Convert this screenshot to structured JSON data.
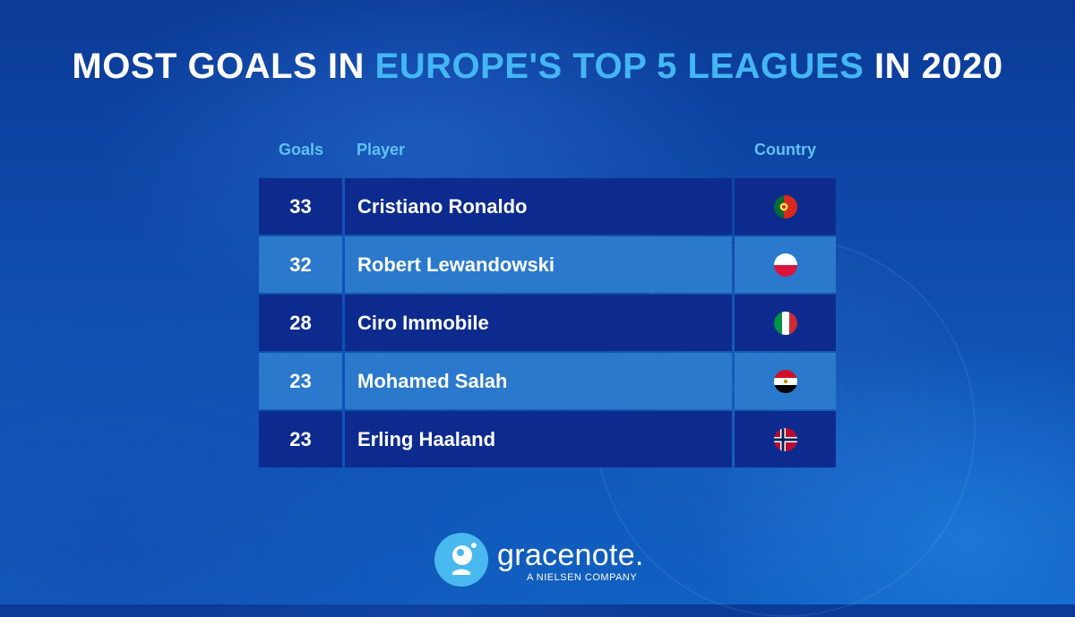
{
  "title": {
    "part1": "MOST GOALS IN ",
    "highlight": "EUROPE'S TOP 5 LEAGUES",
    "part2": " IN 2020",
    "highlight_color": "#43b6f3"
  },
  "headers": {
    "goals": "Goals",
    "player": "Player",
    "country": "Country"
  },
  "colors": {
    "row_dark": "#0d2b8e",
    "row_light": "#2a79cc",
    "header_text": "#5fc2f6"
  },
  "chart_data": {
    "type": "table",
    "title": "MOST GOALS IN EUROPE'S TOP 5 LEAGUES IN 2020",
    "columns": [
      "Goals",
      "Player",
      "Country"
    ],
    "rows": [
      {
        "goals": "33",
        "player": "Cristiano Ronaldo",
        "flag": "portugal-flag-icon"
      },
      {
        "goals": "32",
        "player": "Robert Lewandowski",
        "flag": "poland-flag-icon"
      },
      {
        "goals": "28",
        "player": "Ciro Immobile",
        "flag": "italy-flag-icon"
      },
      {
        "goals": "23",
        "player": "Mohamed Salah",
        "flag": "egypt-flag-icon"
      },
      {
        "goals": "23",
        "player": "Erling Haaland",
        "flag": "norway-flag-icon"
      }
    ]
  },
  "logo": {
    "icon": "gracenote-logo-icon",
    "word": "gracenote.",
    "tagline": "A NIELSEN COMPANY"
  }
}
